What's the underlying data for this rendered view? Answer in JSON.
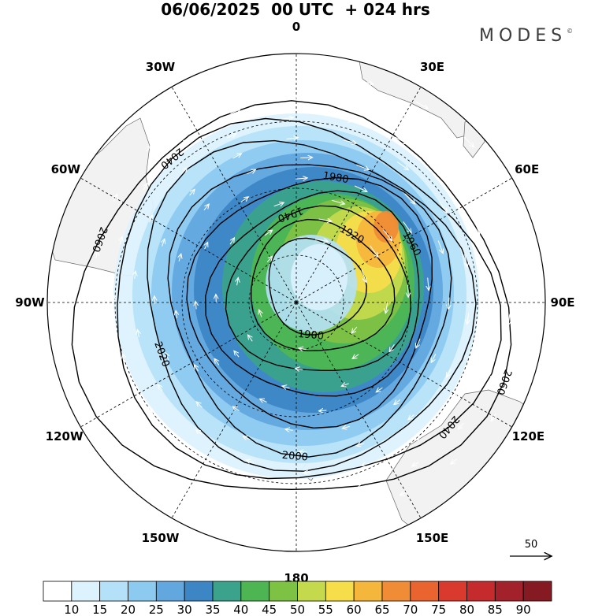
{
  "header": {
    "title": "06/06/2025  00 UTC  + 024 hrs",
    "brand": "MODES",
    "brand_mark": "©"
  },
  "map": {
    "projection": "south polar stereographic",
    "longitude_labels": [
      "0",
      "30E",
      "60E",
      "90E",
      "120E",
      "150E",
      "180",
      "150W",
      "120W",
      "90W",
      "60W",
      "30W"
    ],
    "contour_labels": [
      "2060",
      "2040",
      "2020",
      "2000",
      "1980",
      "1960",
      "1940",
      "1920",
      "1900"
    ],
    "land_color": "#f2f2f2",
    "vector_color": "#ffffff",
    "contour_color": "#000000"
  },
  "reference_vector": {
    "label": "50"
  },
  "colorbar": {
    "labels": [
      "10",
      "15",
      "20",
      "25",
      "30",
      "35",
      "40",
      "45",
      "50",
      "55",
      "60",
      "65",
      "70",
      "75",
      "80",
      "85",
      "90"
    ],
    "colors": [
      "#ffffff",
      "#dcf2fd",
      "#b5e1f8",
      "#8dcaf0",
      "#63a7df",
      "#3d86c6",
      "#3ba28c",
      "#4db652",
      "#7ec244",
      "#c4d94c",
      "#f6dd4a",
      "#f5b63c",
      "#f08c36",
      "#e9642f",
      "#d93a2d",
      "#c52b2c",
      "#a3212a",
      "#861a22"
    ]
  }
}
